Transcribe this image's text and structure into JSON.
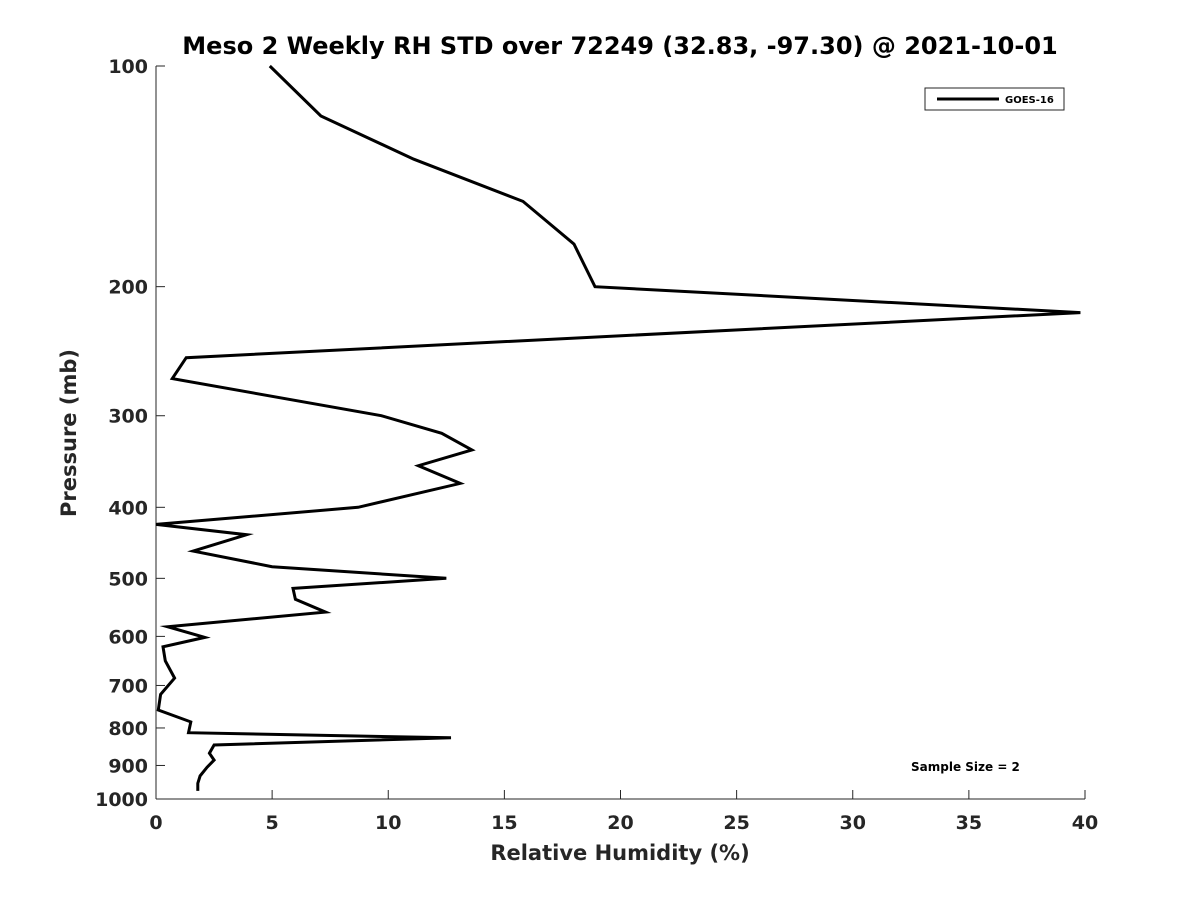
{
  "chart_data": {
    "type": "line",
    "title": "Meso 2 Weekly RH STD over 72249 (32.83, -97.30) @ 2021-10-01",
    "xlabel": "Relative Humidity (%)",
    "ylabel": "Pressure (mb)",
    "xlim": [
      0,
      40
    ],
    "ylim": [
      100,
      1000
    ],
    "yscale": "log",
    "y_reversed": true,
    "x_ticks": [
      0,
      5,
      10,
      15,
      20,
      25,
      30,
      35,
      40
    ],
    "y_ticks": [
      100,
      200,
      300,
      400,
      500,
      600,
      700,
      800,
      900,
      1000
    ],
    "grid": false,
    "legend_position": "top-right",
    "annotation": "Sample Size = 2",
    "series": [
      {
        "name": "GOES-16",
        "color": "#000000",
        "points": [
          {
            "x": 4.9,
            "p": 100
          },
          {
            "x": 7.1,
            "p": 117
          },
          {
            "x": 11.1,
            "p": 134
          },
          {
            "x": 15.8,
            "p": 153
          },
          {
            "x": 18.0,
            "p": 175
          },
          {
            "x": 18.9,
            "p": 200
          },
          {
            "x": 39.8,
            "p": 217
          },
          {
            "x": 1.3,
            "p": 250
          },
          {
            "x": 0.7,
            "p": 267
          },
          {
            "x": 9.7,
            "p": 300
          },
          {
            "x": 12.3,
            "p": 317
          },
          {
            "x": 13.6,
            "p": 334
          },
          {
            "x": 11.3,
            "p": 351
          },
          {
            "x": 13.1,
            "p": 371
          },
          {
            "x": 8.7,
            "p": 400
          },
          {
            "x": 0.0,
            "p": 422
          },
          {
            "x": 3.9,
            "p": 436
          },
          {
            "x": 1.6,
            "p": 459
          },
          {
            "x": 5.0,
            "p": 482
          },
          {
            "x": 12.5,
            "p": 500
          },
          {
            "x": 5.9,
            "p": 516
          },
          {
            "x": 6.0,
            "p": 534
          },
          {
            "x": 7.3,
            "p": 556
          },
          {
            "x": 0.5,
            "p": 582
          },
          {
            "x": 2.1,
            "p": 602
          },
          {
            "x": 0.3,
            "p": 620
          },
          {
            "x": 0.4,
            "p": 648
          },
          {
            "x": 0.8,
            "p": 684
          },
          {
            "x": 0.2,
            "p": 720
          },
          {
            "x": 0.1,
            "p": 756
          },
          {
            "x": 1.5,
            "p": 785
          },
          {
            "x": 1.4,
            "p": 812
          },
          {
            "x": 12.7,
            "p": 825
          },
          {
            "x": 2.5,
            "p": 844
          },
          {
            "x": 2.3,
            "p": 866
          },
          {
            "x": 2.5,
            "p": 885
          },
          {
            "x": 2.2,
            "p": 905
          },
          {
            "x": 1.9,
            "p": 930
          },
          {
            "x": 1.8,
            "p": 952
          },
          {
            "x": 1.8,
            "p": 975
          }
        ]
      }
    ]
  }
}
